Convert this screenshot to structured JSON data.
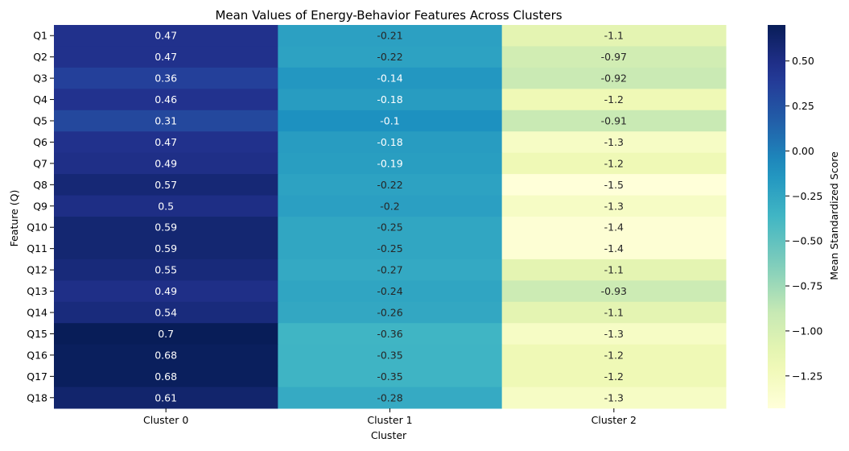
{
  "chart_data": {
    "type": "heatmap",
    "title": "Mean Values of Energy-Behavior Features Across Clusters",
    "xlabel": "Cluster",
    "ylabel": "Feature (Q)",
    "colorbar_label": "Mean Standardized Score",
    "colormap": "YlGnBu",
    "categories_x": [
      "Cluster 0",
      "Cluster 1",
      "Cluster 2"
    ],
    "categories_y": [
      "Q1",
      "Q2",
      "Q3",
      "Q4",
      "Q5",
      "Q6",
      "Q7",
      "Q8",
      "Q9",
      "Q10",
      "Q11",
      "Q12",
      "Q13",
      "Q14",
      "Q15",
      "Q16",
      "Q17",
      "Q18"
    ],
    "values": [
      [
        0.47,
        -0.21,
        -1.1
      ],
      [
        0.47,
        -0.22,
        -0.97
      ],
      [
        0.36,
        -0.14,
        -0.92
      ],
      [
        0.46,
        -0.18,
        -1.2
      ],
      [
        0.31,
        -0.1,
        -0.91
      ],
      [
        0.47,
        -0.18,
        -1.3
      ],
      [
        0.49,
        -0.19,
        -1.2
      ],
      [
        0.57,
        -0.22,
        -1.5
      ],
      [
        0.5,
        -0.2,
        -1.3
      ],
      [
        0.59,
        -0.25,
        -1.4
      ],
      [
        0.59,
        -0.25,
        -1.4
      ],
      [
        0.55,
        -0.27,
        -1.1
      ],
      [
        0.49,
        -0.24,
        -0.93
      ],
      [
        0.54,
        -0.26,
        -1.1
      ],
      [
        0.7,
        -0.36,
        -1.3
      ],
      [
        0.68,
        -0.35,
        -1.2
      ],
      [
        0.68,
        -0.35,
        -1.2
      ],
      [
        0.61,
        -0.28,
        -1.3
      ]
    ],
    "color_range": [
      -1.43,
      0.7
    ],
    "colorbar_ticks": [
      0.5,
      0.25,
      0.0,
      -0.25,
      -0.5,
      -0.75,
      -1.0,
      -1.25
    ],
    "colorbar_tick_labels": [
      "0.50",
      "0.25",
      "0.00",
      "−0.25",
      "−0.50",
      "−0.75",
      "−1.00",
      "−1.25"
    ],
    "annotations": true,
    "grid": false
  }
}
